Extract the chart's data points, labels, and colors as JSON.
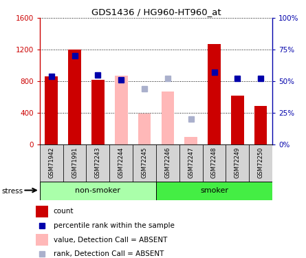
{
  "title": "GDS1436 / HG960-HT960_at",
  "samples": [
    "GSM71942",
    "GSM71991",
    "GSM72243",
    "GSM72244",
    "GSM72245",
    "GSM72246",
    "GSM72247",
    "GSM72248",
    "GSM72249",
    "GSM72250"
  ],
  "count_values": [
    860,
    1200,
    820,
    null,
    null,
    null,
    null,
    1270,
    620,
    490
  ],
  "count_absent_values": [
    null,
    null,
    null,
    870,
    390,
    670,
    95,
    null,
    null,
    null
  ],
  "rank_values": [
    54,
    70,
    55,
    51,
    null,
    null,
    null,
    57,
    52,
    52
  ],
  "rank_absent_values": [
    null,
    null,
    null,
    null,
    44,
    52,
    20,
    null,
    null,
    null
  ],
  "ylim_left": [
    0,
    1600
  ],
  "ylim_right": [
    0,
    100
  ],
  "yticks_left": [
    0,
    400,
    800,
    1200,
    1600
  ],
  "yticks_right": [
    0,
    25,
    50,
    75,
    100
  ],
  "ytick_labels_right": [
    "0%",
    "25%",
    "50%",
    "75%",
    "100%"
  ],
  "color_count": "#cc0000",
  "color_rank": "#0000aa",
  "color_count_absent": "#ffb8b8",
  "color_rank_absent": "#aab0cc",
  "color_non_smoker": "#aaffaa",
  "color_smoker": "#44ee44",
  "bar_width": 0.55,
  "legend_labels": [
    "count",
    "percentile rank within the sample",
    "value, Detection Call = ABSENT",
    "rank, Detection Call = ABSENT"
  ]
}
